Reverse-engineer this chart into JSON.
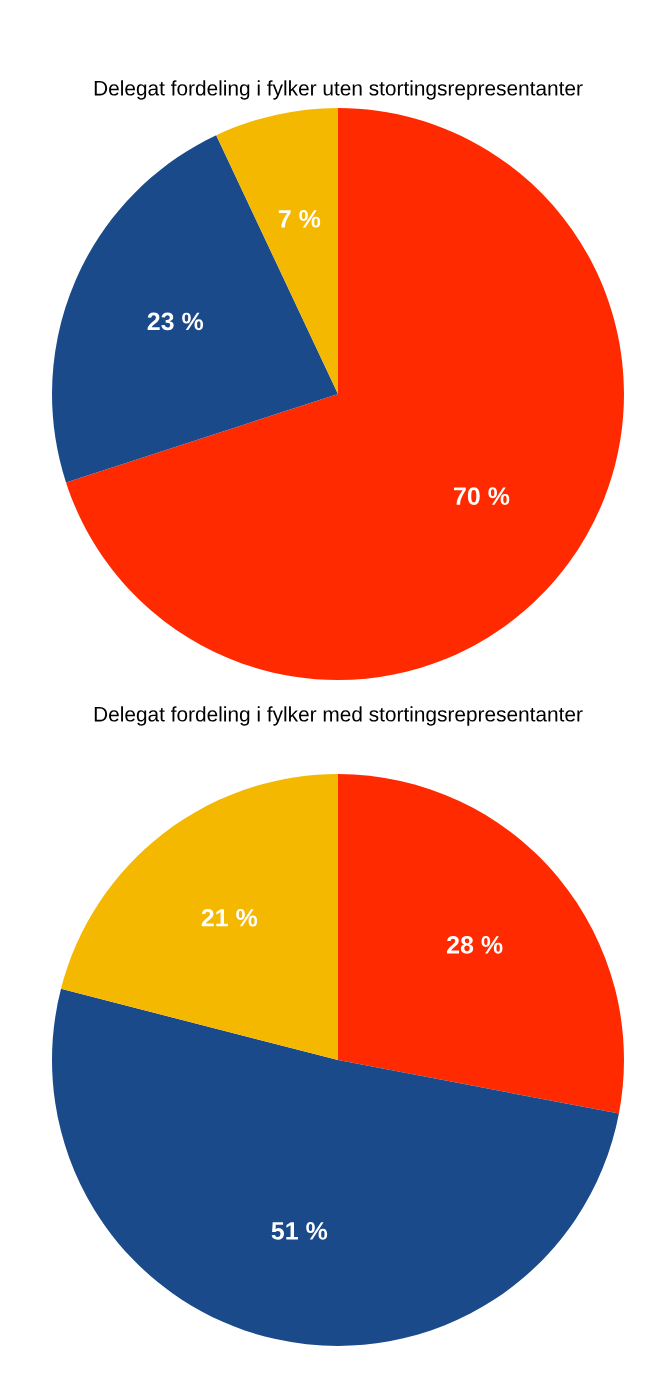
{
  "chart_data": [
    {
      "type": "pie",
      "title": "Delegat fordeling i fylker uten stortingsrepresentanter",
      "categories": [
        null,
        null,
        null
      ],
      "values": [
        70,
        23,
        7
      ],
      "colors": [
        "#ff2a00",
        "#1a4a8a",
        "#f5b800"
      ],
      "value_labels": [
        "70 %",
        "23 %",
        "7 %"
      ]
    },
    {
      "type": "pie",
      "title": "Delegat fordeling i fylker med stortingsrepresentanter",
      "categories": [
        null,
        null,
        null
      ],
      "values": [
        28,
        51,
        21
      ],
      "colors": [
        "#ff2a00",
        "#1a4a8a",
        "#f5b800"
      ],
      "value_labels": [
        "28 %",
        "51 %",
        "21 %"
      ]
    }
  ]
}
